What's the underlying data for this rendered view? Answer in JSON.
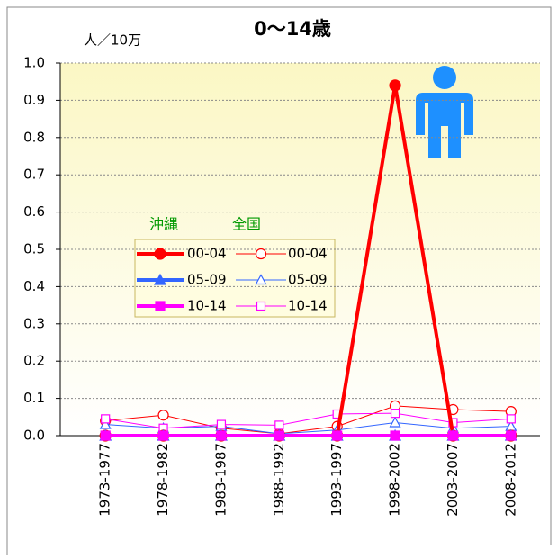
{
  "chart_data": {
    "type": "line",
    "title": "0～14歳",
    "y_unit": "人／10万",
    "categories": [
      "1973-1977",
      "1978-1982",
      "1983-1987",
      "1988-1992",
      "1993-1997",
      "1998-2002",
      "2003-2007",
      "2008-2012"
    ],
    "ylim": [
      0,
      1
    ],
    "yticks": [
      {
        "value": 0,
        "label": "0.0"
      },
      0.1,
      0.2,
      0.3,
      0.4,
      0.5,
      0.6,
      0.7,
      0.8,
      0.9,
      {
        "value": 1,
        "label": "1.0"
      }
    ],
    "grid": true,
    "series_groups": [
      {
        "name": "沖縄",
        "series": [
          {
            "name": "00-04",
            "color": "#ff0000",
            "marker": "circle",
            "filled": true,
            "values": [
              0,
              0,
              0,
              0,
              0,
              0.94,
              0,
              0
            ]
          },
          {
            "name": "05-09",
            "color": "#3366ff",
            "marker": "triangle",
            "filled": true,
            "values": [
              0,
              0,
              0,
              0,
              0,
              0,
              0,
              0
            ]
          },
          {
            "name": "10-14",
            "color": "#ff00ff",
            "marker": "square",
            "filled": true,
            "values": [
              0,
              0,
              0,
              0,
              0,
              0,
              0,
              0
            ]
          }
        ]
      },
      {
        "name": "全国",
        "series": [
          {
            "name": "00-04",
            "color": "#ff0000",
            "marker": "circle",
            "filled": false,
            "values": [
              0.04,
              0.055,
              0.02,
              0.005,
              0.025,
              0.08,
              0.07,
              0.065
            ]
          },
          {
            "name": "05-09",
            "color": "#3366ff",
            "marker": "triangle",
            "filled": false,
            "values": [
              0.03,
              0.02,
              0.025,
              0.005,
              0.015,
              0.035,
              0.02,
              0.025
            ]
          },
          {
            "name": "10-14",
            "color": "#ff00ff",
            "marker": "square",
            "filled": false,
            "values": [
              0.045,
              0.02,
              0.03,
              0.028,
              0.058,
              0.06,
              0.035,
              0.045
            ]
          }
        ]
      }
    ]
  }
}
